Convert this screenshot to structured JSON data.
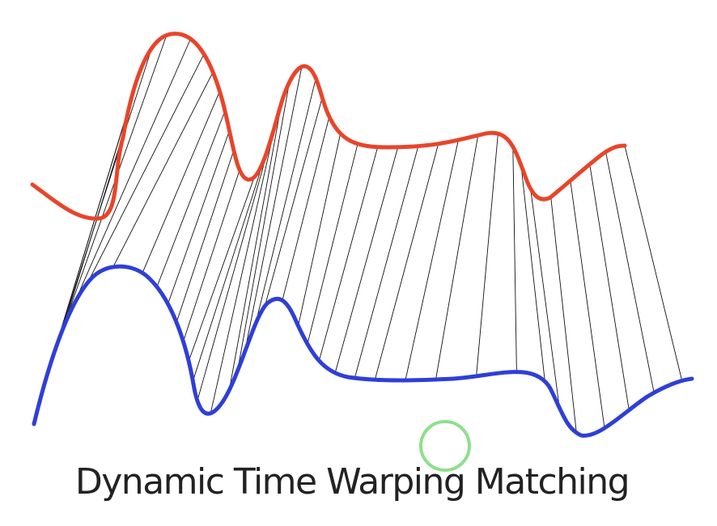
{
  "caption": "Dynamic Time Warping Matching",
  "colors": {
    "top_curve": "#e8452a",
    "bottom_curve": "#2e3fd8",
    "warp_lines": "#111111",
    "cursor_ring": "#8ee08a",
    "background": "#ffffff"
  }
}
